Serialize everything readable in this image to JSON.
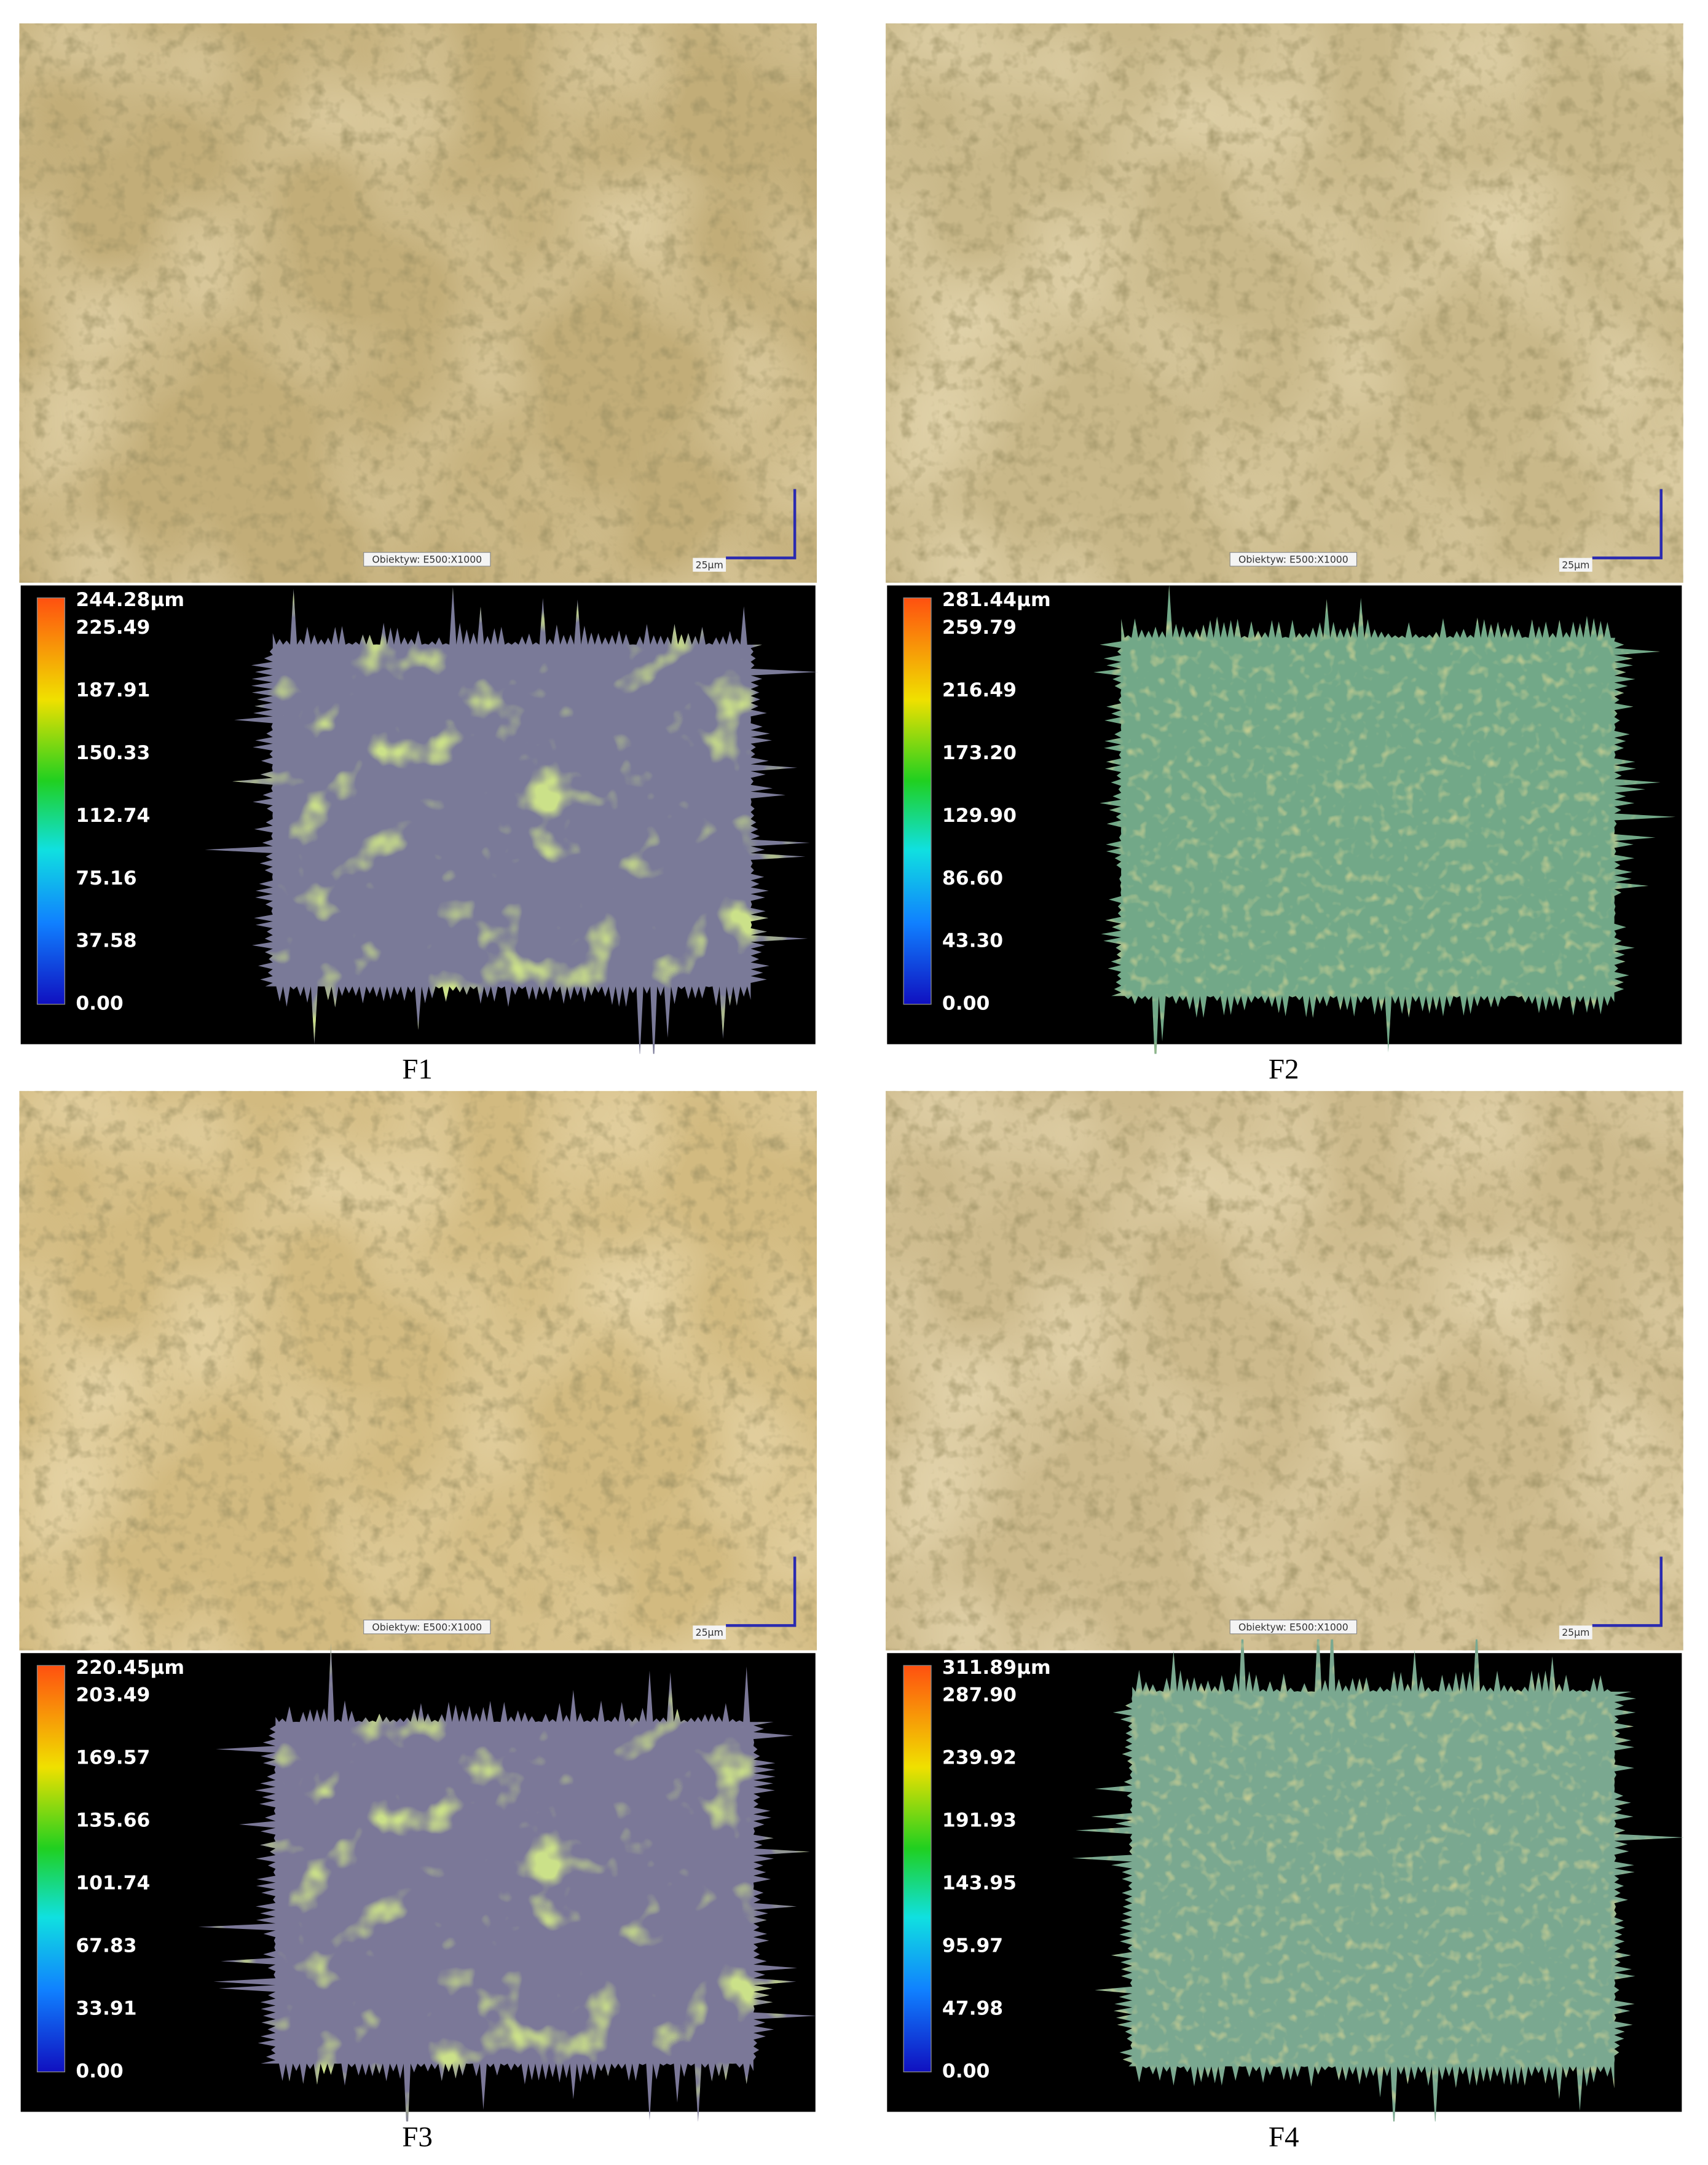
{
  "panels": [
    {
      "label": "F1",
      "micrograph": {
        "objective": "Obiektyw: E500:X1000",
        "scale_bar": "25µm"
      },
      "height_map": {
        "scale": [
          "244.28µm",
          "225.49",
          "187.91",
          "150.33",
          "112.74",
          "75.16",
          "37.58",
          "0.00"
        ]
      }
    },
    {
      "label": "F2",
      "micrograph": {
        "objective": "Obiektyw: E500:X1000",
        "scale_bar": "25µm"
      },
      "height_map": {
        "scale": [
          "281.44µm",
          "259.79",
          "216.49",
          "173.20",
          "129.90",
          "86.60",
          "43.30",
          "0.00"
        ]
      }
    },
    {
      "label": "F3",
      "micrograph": {
        "objective": "Obiektyw: E500:X1000",
        "scale_bar": "25µm"
      },
      "height_map": {
        "scale": [
          "220.45µm",
          "203.49",
          "169.57",
          "135.66",
          "101.74",
          "67.83",
          "33.91",
          "0.00"
        ]
      }
    },
    {
      "label": "F4",
      "micrograph": {
        "objective": "Obiektyw: E500:X1000",
        "scale_bar": "25µm"
      },
      "height_map": {
        "scale": [
          "311.89µm",
          "287.90",
          "239.92",
          "191.93",
          "143.95",
          "95.97",
          "47.98",
          "0.00"
        ]
      }
    }
  ]
}
